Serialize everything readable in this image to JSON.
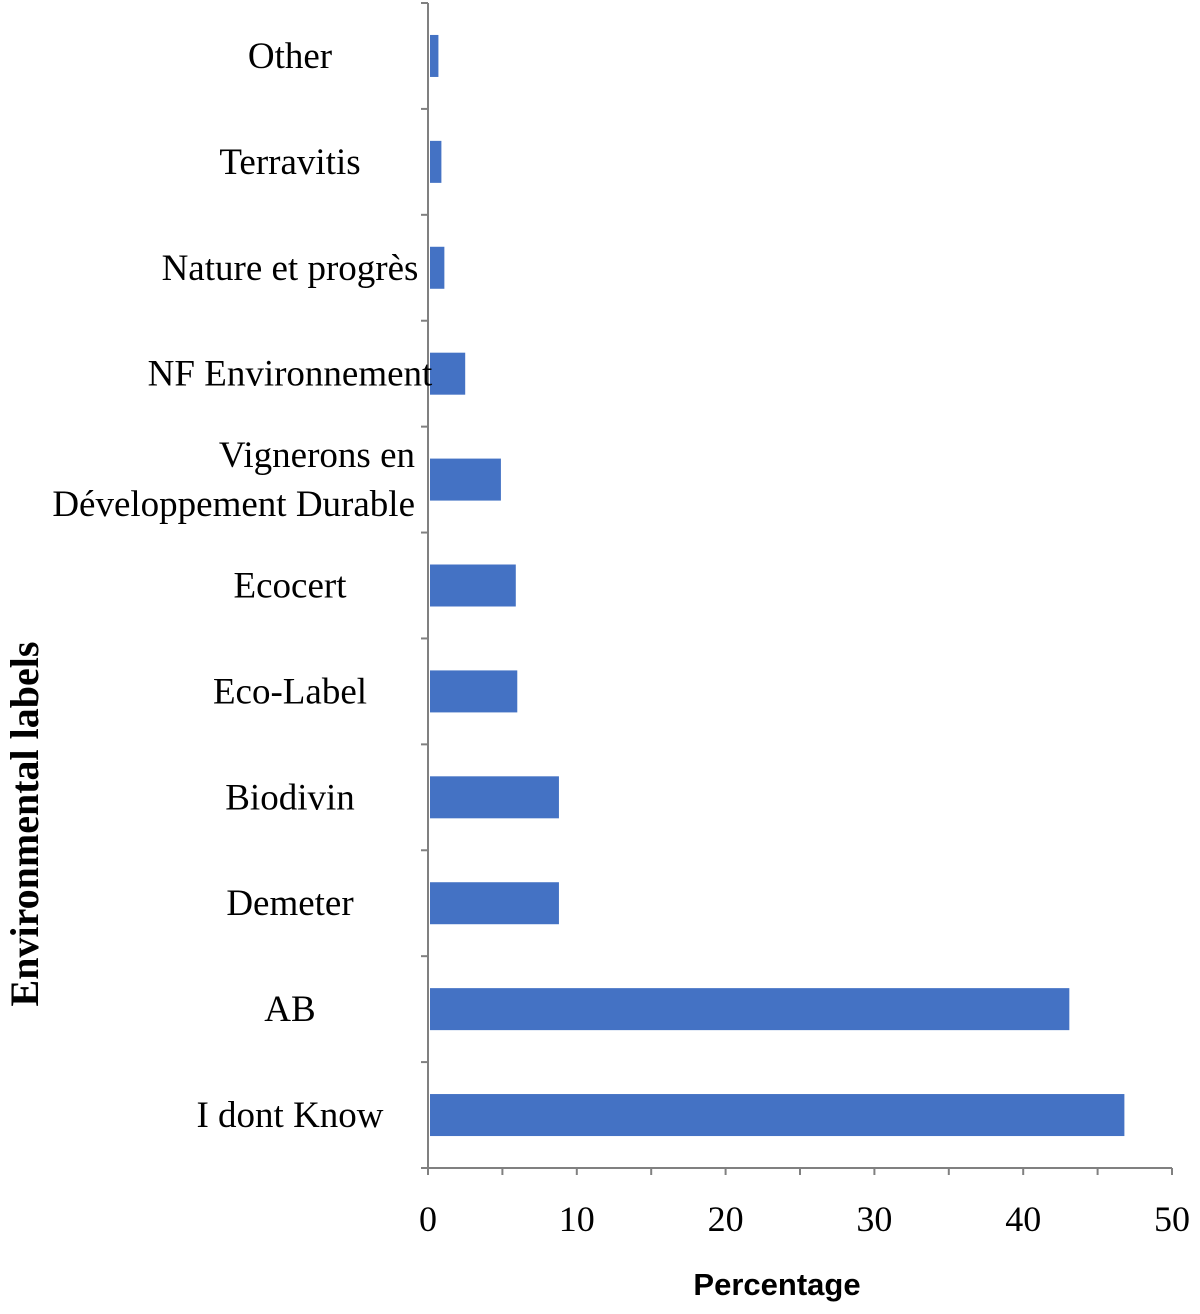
{
  "chart_data": {
    "type": "bar",
    "orientation": "horizontal",
    "title": "",
    "xlabel": "Percentage",
    "ylabel": "Environmental labels",
    "xlim": [
      0,
      50
    ],
    "x_ticks": [
      "0",
      "10",
      "20",
      "30",
      "40",
      "50"
    ],
    "grid": false,
    "categories": [
      [
        "I dont Know"
      ],
      [
        "AB"
      ],
      [
        "Demeter"
      ],
      [
        "Biodivin"
      ],
      [
        "Eco-Label"
      ],
      [
        "Ecocert"
      ],
      [
        "Vignerons en",
        "Développement Durable"
      ],
      [
        "NF Environnement"
      ],
      [
        "Nature et progrès"
      ],
      [
        "Terravitis"
      ],
      [
        "Other"
      ]
    ],
    "values": [
      46.8,
      43.1,
      8.8,
      8.8,
      6.0,
      5.9,
      4.9,
      2.5,
      1.1,
      0.9,
      0.7
    ],
    "colors": {
      "bar": "#4472C4",
      "axis": "#808080"
    }
  }
}
